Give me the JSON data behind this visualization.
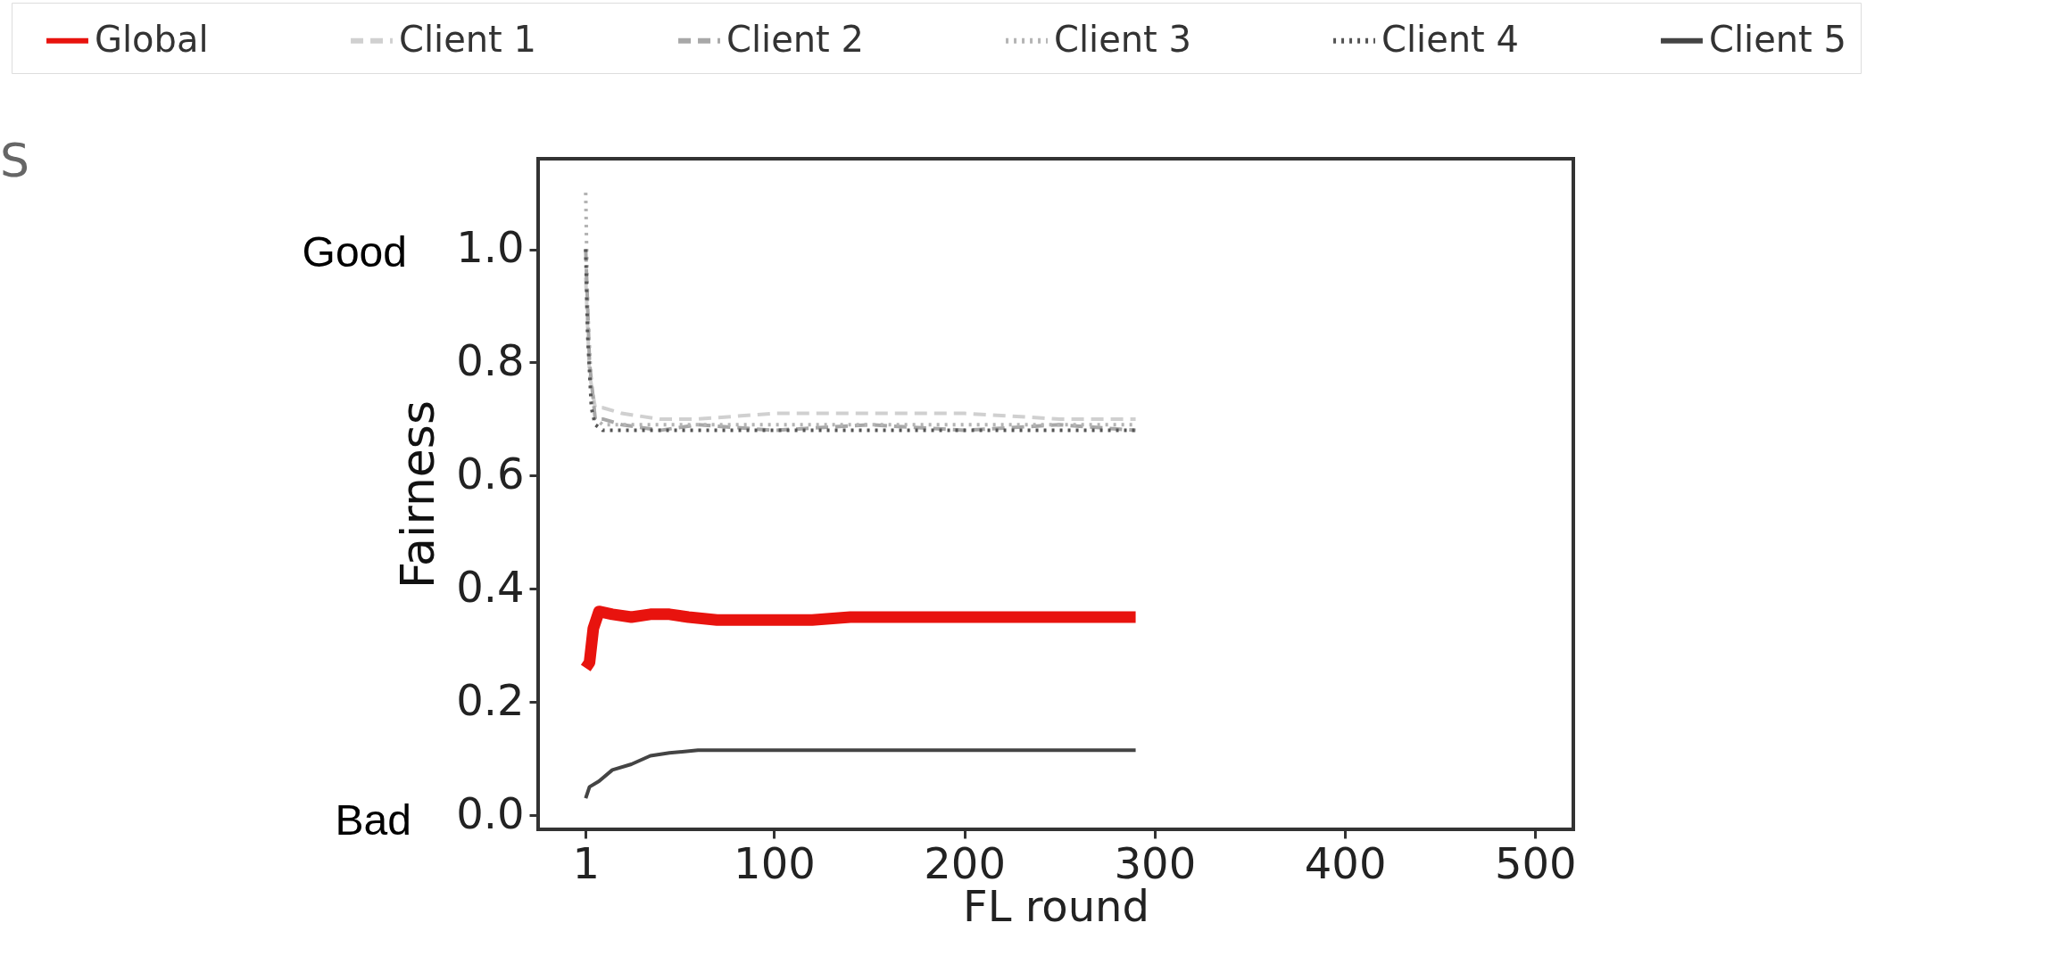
{
  "chart_data": {
    "type": "line",
    "xlabel": "FL round",
    "ylabel": "Fairness",
    "legend": "top",
    "grid": false,
    "xlim": [
      -24,
      520
    ],
    "ylim": [
      -0.025,
      1.16
    ],
    "xticks": [
      1,
      100,
      200,
      300,
      400,
      500
    ],
    "yticks": [
      {
        "value": 0,
        "label": "0.0"
      },
      {
        "value": 0.2,
        "label": "0.2"
      },
      {
        "value": 0.4,
        "label": "0.4"
      },
      {
        "value": 0.6,
        "label": "0.6"
      },
      {
        "value": 0.8,
        "label": "0.8"
      },
      {
        "value": 1,
        "label": "1.0"
      }
    ],
    "annotations": [
      "S",
      "Good",
      "Bad"
    ],
    "series": [
      {
        "name": "Global",
        "color": "#e8130e",
        "line_style": "solid",
        "x": [
          1,
          3,
          5,
          8,
          15,
          25,
          35,
          45,
          55,
          70,
          90,
          120,
          140,
          160,
          200,
          250,
          290
        ],
        "values": [
          0.26,
          0.27,
          0.33,
          0.36,
          0.355,
          0.35,
          0.355,
          0.355,
          0.35,
          0.345,
          0.345,
          0.345,
          0.35,
          0.35,
          0.35,
          0.35,
          0.35
        ]
      },
      {
        "name": "Client 1",
        "color": "#d0d0d0",
        "line_style": "dashed",
        "x": [
          1,
          3,
          6,
          10,
          20,
          40,
          60,
          100,
          150,
          200,
          250,
          290
        ],
        "values": [
          0.95,
          0.78,
          0.72,
          0.72,
          0.71,
          0.7,
          0.7,
          0.71,
          0.71,
          0.71,
          0.7,
          0.7
        ]
      },
      {
        "name": "Client 2",
        "color": "#a8a8a8",
        "line_style": "dashed",
        "x": [
          1,
          3,
          6,
          10,
          20,
          40,
          60,
          100,
          150,
          200,
          250,
          290
        ],
        "values": [
          1.0,
          0.8,
          0.7,
          0.7,
          0.69,
          0.68,
          0.69,
          0.68,
          0.69,
          0.68,
          0.69,
          0.68
        ]
      },
      {
        "name": "Client 3",
        "color": "#b4b4b4",
        "line_style": "dotted",
        "x": [
          1,
          2,
          4,
          6,
          10,
          20,
          40,
          80,
          120,
          160,
          200,
          250,
          290
        ],
        "values": [
          1.1,
          0.9,
          0.75,
          0.7,
          0.69,
          0.69,
          0.69,
          0.69,
          0.69,
          0.69,
          0.69,
          0.69,
          0.69
        ]
      },
      {
        "name": "Client 4",
        "color": "#555555",
        "line_style": "dotted",
        "x": [
          1,
          2,
          4,
          6,
          10,
          20,
          40,
          80,
          120,
          160,
          200,
          250,
          290
        ],
        "values": [
          1.0,
          0.85,
          0.72,
          0.69,
          0.68,
          0.68,
          0.68,
          0.68,
          0.68,
          0.68,
          0.68,
          0.68,
          0.68
        ]
      },
      {
        "name": "Client 5",
        "color": "#444444",
        "line_style": "solid",
        "x": [
          1,
          3,
          8,
          15,
          25,
          35,
          45,
          60,
          100,
          150,
          200,
          290
        ],
        "values": [
          0.03,
          0.05,
          0.06,
          0.08,
          0.09,
          0.105,
          0.11,
          0.115,
          0.115,
          0.115,
          0.115,
          0.115
        ]
      }
    ]
  }
}
